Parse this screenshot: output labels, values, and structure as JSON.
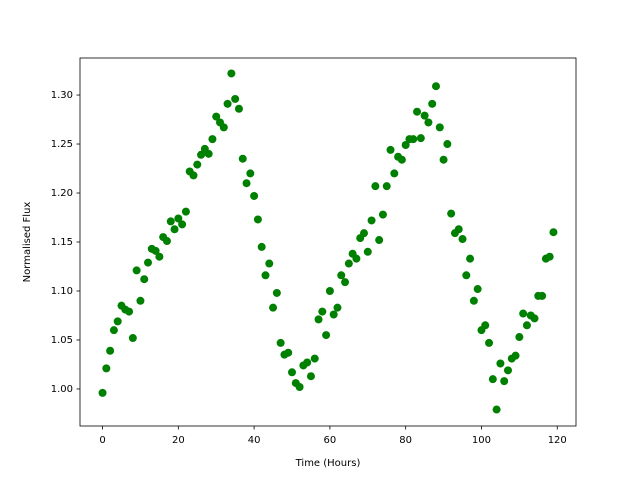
{
  "chart_data": {
    "type": "scatter",
    "xlabel": "Time (Hours)",
    "ylabel": "Normalised Flux",
    "series": [
      {
        "color": "#008000",
        "x": [
          0,
          1,
          2,
          3,
          4,
          5,
          6,
          7,
          8,
          9,
          10,
          11,
          12,
          13,
          14,
          15,
          16,
          17,
          18,
          19,
          20,
          21,
          22,
          23,
          24,
          25,
          26,
          27,
          28,
          29,
          30,
          31,
          32,
          33,
          34,
          35,
          36,
          37,
          38,
          39,
          40,
          41,
          42,
          43,
          44,
          45,
          46,
          47,
          48,
          49,
          50,
          51,
          52,
          53,
          54,
          55,
          56,
          57,
          58,
          59,
          60,
          61,
          62,
          63,
          64,
          65,
          66,
          67,
          68,
          69,
          70,
          71,
          72,
          73,
          74,
          75,
          76,
          77,
          78,
          79,
          80,
          81,
          82,
          83,
          84,
          85,
          86,
          87,
          88,
          89,
          90,
          91,
          92,
          93,
          94,
          95,
          96,
          97,
          98,
          99,
          100,
          101,
          102,
          103,
          104,
          105,
          106,
          107,
          108,
          109,
          110,
          111,
          112,
          113,
          114,
          115,
          116,
          117,
          118,
          119
        ],
        "values": [
          0.996,
          1.021,
          1.039,
          1.06,
          1.069,
          1.085,
          1.081,
          1.079,
          1.052,
          1.121,
          1.09,
          1.112,
          1.129,
          1.143,
          1.141,
          1.135,
          1.155,
          1.151,
          1.171,
          1.163,
          1.174,
          1.168,
          1.181,
          1.222,
          1.218,
          1.229,
          1.239,
          1.245,
          1.24,
          1.255,
          1.278,
          1.272,
          1.267,
          1.291,
          1.322,
          1.296,
          1.286,
          1.235,
          1.21,
          1.22,
          1.197,
          1.173,
          1.145,
          1.116,
          1.128,
          1.083,
          1.098,
          1.047,
          1.035,
          1.037,
          1.017,
          1.006,
          1.002,
          1.024,
          1.027,
          1.013,
          1.031,
          1.071,
          1.079,
          1.055,
          1.1,
          1.076,
          1.083,
          1.116,
          1.109,
          1.128,
          1.138,
          1.133,
          1.154,
          1.159,
          1.14,
          1.172,
          1.207,
          1.152,
          1.178,
          1.207,
          1.244,
          1.22,
          1.237,
          1.234,
          1.249,
          1.255,
          1.255,
          1.283,
          1.256,
          1.279,
          1.272,
          1.291,
          1.309,
          1.267,
          1.234,
          1.25,
          1.179,
          1.159,
          1.163,
          1.153,
          1.116,
          1.133,
          1.09,
          1.102,
          1.06,
          1.065,
          1.047,
          1.01,
          0.979,
          1.026,
          1.008,
          1.019,
          1.031,
          1.034,
          1.053,
          1.077,
          1.065,
          1.075,
          1.072,
          1.095,
          1.095,
          1.133,
          1.135,
          1.16
        ]
      }
    ],
    "xlim": [
      -5.95,
      124.95
    ],
    "ylim": [
      0.9622,
      1.3378
    ],
    "xticks": [
      0,
      20,
      40,
      60,
      80,
      100,
      120
    ],
    "yticks": [
      {
        "value": 1.0,
        "label": "1.00"
      },
      1.05,
      {
        "value": 1.1,
        "label": "1.10"
      },
      1.15,
      {
        "value": 1.2,
        "label": "1.20"
      },
      1.25,
      {
        "value": 1.3,
        "label": "1.30"
      }
    ]
  }
}
